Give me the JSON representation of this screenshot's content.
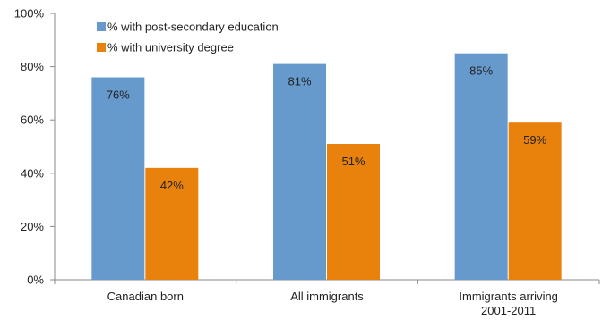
{
  "chart_data": {
    "type": "bar",
    "title": "",
    "xlabel": "",
    "ylabel": "",
    "categories": [
      [
        "Canadian born"
      ],
      [
        "All immigrants"
      ],
      [
        "Immigrants arriving",
        "2001-2011"
      ]
    ],
    "series": [
      {
        "name": "% with post-secondary education",
        "color": "#6699cc",
        "values": [
          76,
          81,
          85
        ],
        "labels": [
          "76%",
          "81%",
          "85%"
        ]
      },
      {
        "name": "% with university degree",
        "color": "#e8820c",
        "values": [
          42,
          51,
          59
        ],
        "labels": [
          "42%",
          "51%",
          "59%"
        ]
      }
    ],
    "ylim": [
      0,
      100
    ],
    "yticks": [
      0,
      20,
      40,
      60,
      80,
      100
    ],
    "ytick_labels": [
      "0%",
      "20%",
      "40%",
      "60%",
      "80%",
      "100%"
    ],
    "grid": false,
    "legend_position": "top-left"
  }
}
